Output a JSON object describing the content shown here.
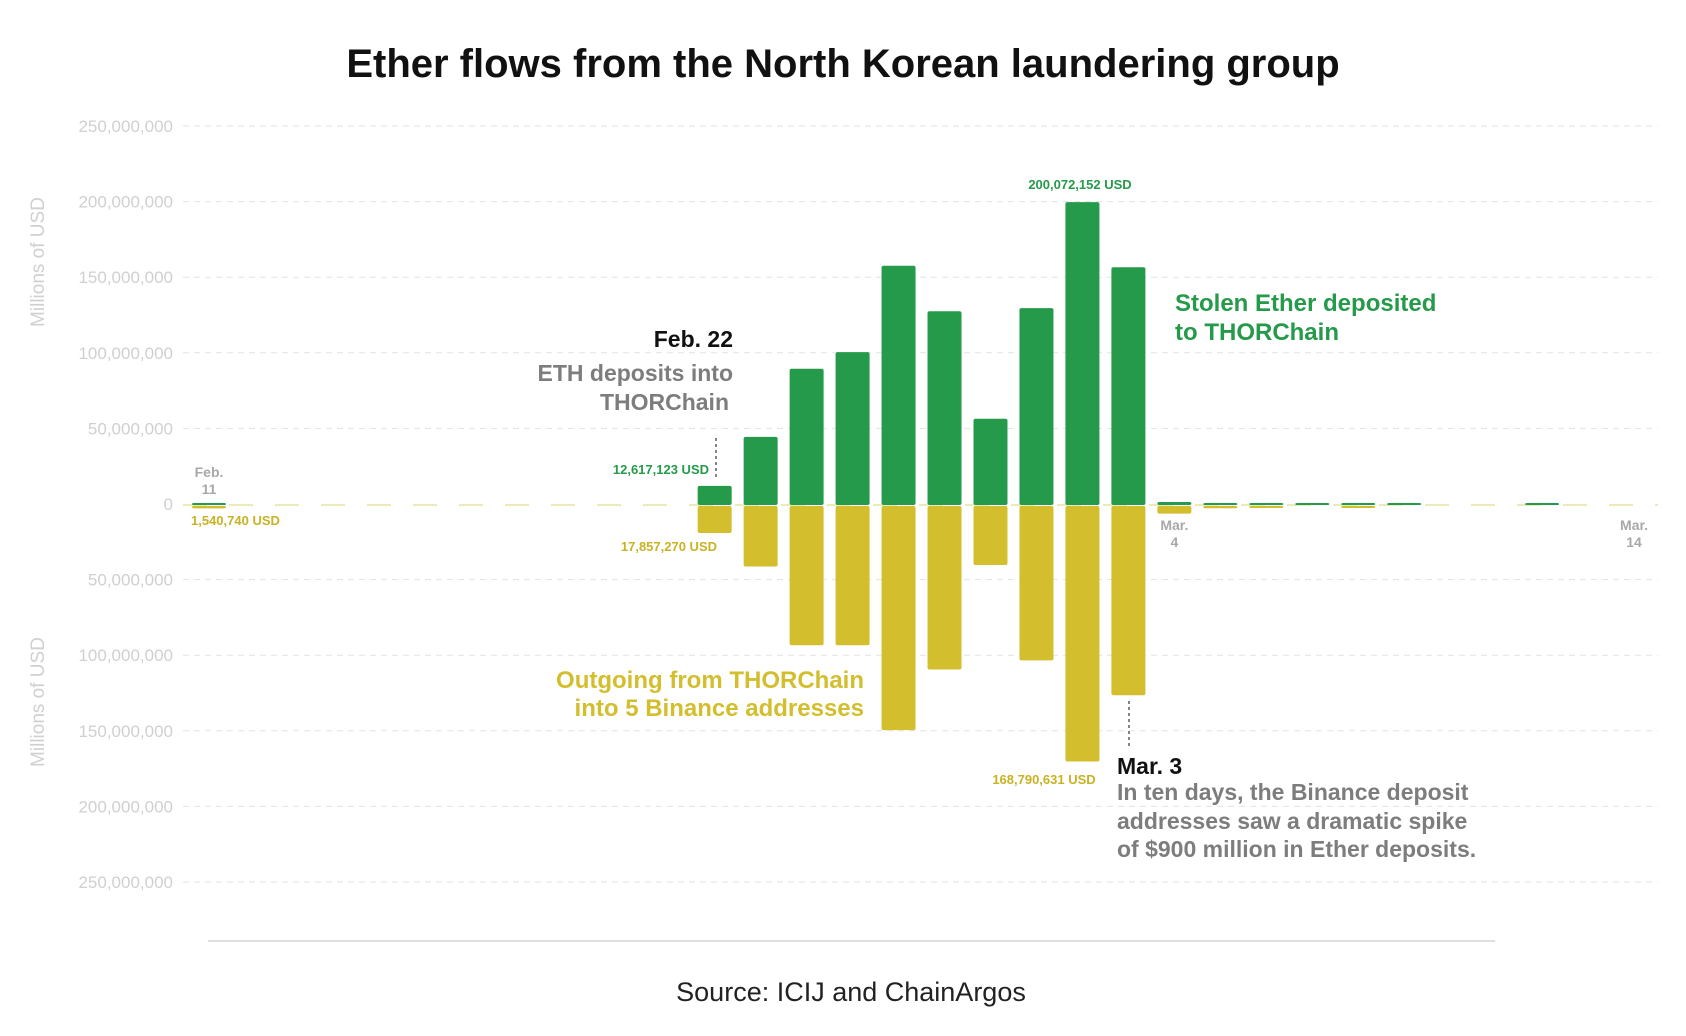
{
  "chart_data": {
    "type": "bar",
    "title": "Ether flows from the North Korean laundering group",
    "ylabel_top": "Millions of USD",
    "ylabel_bottom": "Millions of USD",
    "y_ticks": [
      "250,000,000",
      "200,000,000",
      "150,000,000",
      "100,000,000",
      "50,000,000",
      "0",
      "50,000,000",
      "100,000,000",
      "150,000,000",
      "200,000,000",
      "250,000,000"
    ],
    "ylim": [
      -250000000,
      250000000
    ],
    "x_tick_labels": [
      {
        "text": [
          "Feb.",
          "11"
        ],
        "day": 0
      },
      {
        "text": [
          "Mar.",
          "4"
        ],
        "day": 21
      },
      {
        "text": [
          "Mar.",
          "14"
        ],
        "day": 31
      }
    ],
    "day_range": [
      0,
      31
    ],
    "series": [
      {
        "name": "Stolen Ether deposited to THORChain",
        "color": "#249a4a",
        "direction": "up",
        "points": [
          {
            "day": 0,
            "value": 500000
          },
          {
            "day": 11,
            "value": 12617123
          },
          {
            "day": 12,
            "value": 45000000
          },
          {
            "day": 13,
            "value": 90000000
          },
          {
            "day": 14,
            "value": 101000000
          },
          {
            "day": 15,
            "value": 158000000
          },
          {
            "day": 16,
            "value": 128000000
          },
          {
            "day": 17,
            "value": 57000000
          },
          {
            "day": 18,
            "value": 130000000
          },
          {
            "day": 19,
            "value": 200072152
          },
          {
            "day": 20,
            "value": 157000000
          },
          {
            "day": 21,
            "value": 2000000
          },
          {
            "day": 22,
            "value": 600000
          },
          {
            "day": 23,
            "value": 500000
          },
          {
            "day": 24,
            "value": 600000
          },
          {
            "day": 25,
            "value": 700000
          },
          {
            "day": 26,
            "value": 700000
          },
          {
            "day": 29,
            "value": 900000
          }
        ]
      },
      {
        "name": "Outgoing from THORChain into 5 Binance addresses",
        "color": "#d3be2e",
        "direction": "down",
        "points": [
          {
            "day": 0,
            "value": 1540740
          },
          {
            "day": 11,
            "value": 17857270
          },
          {
            "day": 12,
            "value": 40000000
          },
          {
            "day": 13,
            "value": 92000000
          },
          {
            "day": 14,
            "value": 92000000
          },
          {
            "day": 15,
            "value": 148000000
          },
          {
            "day": 16,
            "value": 108000000
          },
          {
            "day": 17,
            "value": 39000000
          },
          {
            "day": 18,
            "value": 102000000
          },
          {
            "day": 19,
            "value": 168790631
          },
          {
            "day": 20,
            "value": 125000000
          },
          {
            "day": 21,
            "value": 5000000
          },
          {
            "day": 22,
            "value": 1500000
          },
          {
            "day": 23,
            "value": 1200000
          },
          {
            "day": 25,
            "value": 1200000
          }
        ]
      }
    ],
    "data_labels": {
      "feb11_value": "1,540,740 USD",
      "feb22_up_value": "12,617,123 USD",
      "feb22_down_value": "17,857,270 USD",
      "peak_up_value": "200,072,152 USD",
      "peak_down_value": "168,790,631 USD"
    },
    "annotations": {
      "feb22_date": "Feb. 22",
      "feb22_line1": "ETH deposits into",
      "feb22_line2": "THORChain",
      "mar3_date": "Mar. 3",
      "mar3_line1": "In ten days, the Binance deposit",
      "mar3_line2": "addresses saw a dramatic spike",
      "mar3_line3": "of $900 million in Ether deposits."
    },
    "legend": {
      "green_line1": "Stolen Ether deposited",
      "green_line2": "to THORChain",
      "yellow_line1": "Outgoing from THORChain",
      "yellow_line2": "into 5 Binance addresses"
    },
    "source": "Source: ICIJ and ChainArgos"
  }
}
